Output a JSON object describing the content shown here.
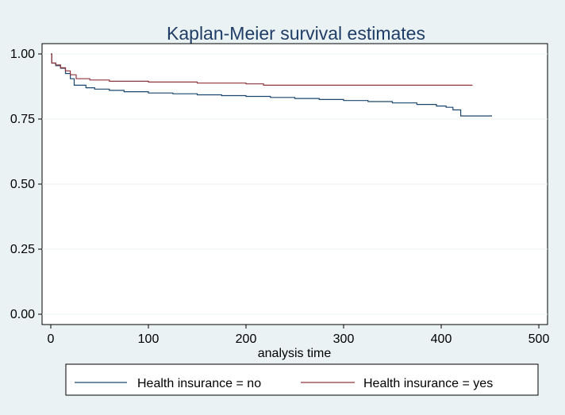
{
  "chart_data": {
    "type": "line",
    "title": "Kaplan-Meier survival estimates",
    "xlabel": "analysis time",
    "ylabel": "",
    "xlim": [
      0,
      500
    ],
    "ylim": [
      0,
      1
    ],
    "x_ticks": [
      "0",
      "100",
      "200",
      "300",
      "400",
      "500"
    ],
    "x_tick_values": [
      0,
      100,
      200,
      300,
      400,
      500
    ],
    "y_ticks": [
      "0.00",
      "0.25",
      "0.50",
      "0.75",
      "1.00"
    ],
    "y_tick_values": [
      0,
      0.25,
      0.5,
      0.75,
      1.0
    ],
    "grid": true,
    "legend_position": "bottom",
    "series": [
      {
        "name": "Health insurance = no",
        "color": "#1a476f",
        "step": true,
        "points": [
          [
            0,
            1.0
          ],
          [
            1,
            0.965
          ],
          [
            5,
            0.955
          ],
          [
            10,
            0.945
          ],
          [
            15,
            0.925
          ],
          [
            20,
            0.905
          ],
          [
            24,
            0.88
          ],
          [
            36,
            0.87
          ],
          [
            45,
            0.865
          ],
          [
            60,
            0.86
          ],
          [
            75,
            0.855
          ],
          [
            100,
            0.85
          ],
          [
            125,
            0.847
          ],
          [
            150,
            0.843
          ],
          [
            175,
            0.84
          ],
          [
            200,
            0.837
          ],
          [
            225,
            0.833
          ],
          [
            250,
            0.829
          ],
          [
            275,
            0.825
          ],
          [
            300,
            0.821
          ],
          [
            325,
            0.817
          ],
          [
            350,
            0.812
          ],
          [
            375,
            0.806
          ],
          [
            395,
            0.8
          ],
          [
            405,
            0.795
          ],
          [
            412,
            0.785
          ],
          [
            420,
            0.762
          ],
          [
            452,
            0.762
          ]
        ]
      },
      {
        "name": "Health insurance = yes",
        "color": "#90353b",
        "step": true,
        "points": [
          [
            0,
            1.0
          ],
          [
            1,
            0.965
          ],
          [
            5,
            0.958
          ],
          [
            10,
            0.947
          ],
          [
            15,
            0.935
          ],
          [
            20,
            0.92
          ],
          [
            26,
            0.905
          ],
          [
            40,
            0.9
          ],
          [
            60,
            0.895
          ],
          [
            100,
            0.892
          ],
          [
            150,
            0.888
          ],
          [
            200,
            0.885
          ],
          [
            218,
            0.88
          ],
          [
            432,
            0.88
          ]
        ]
      }
    ]
  },
  "colors": {
    "background": "#eaf2f3",
    "plot_area": "#ffffff",
    "title": "#1f3d66"
  }
}
